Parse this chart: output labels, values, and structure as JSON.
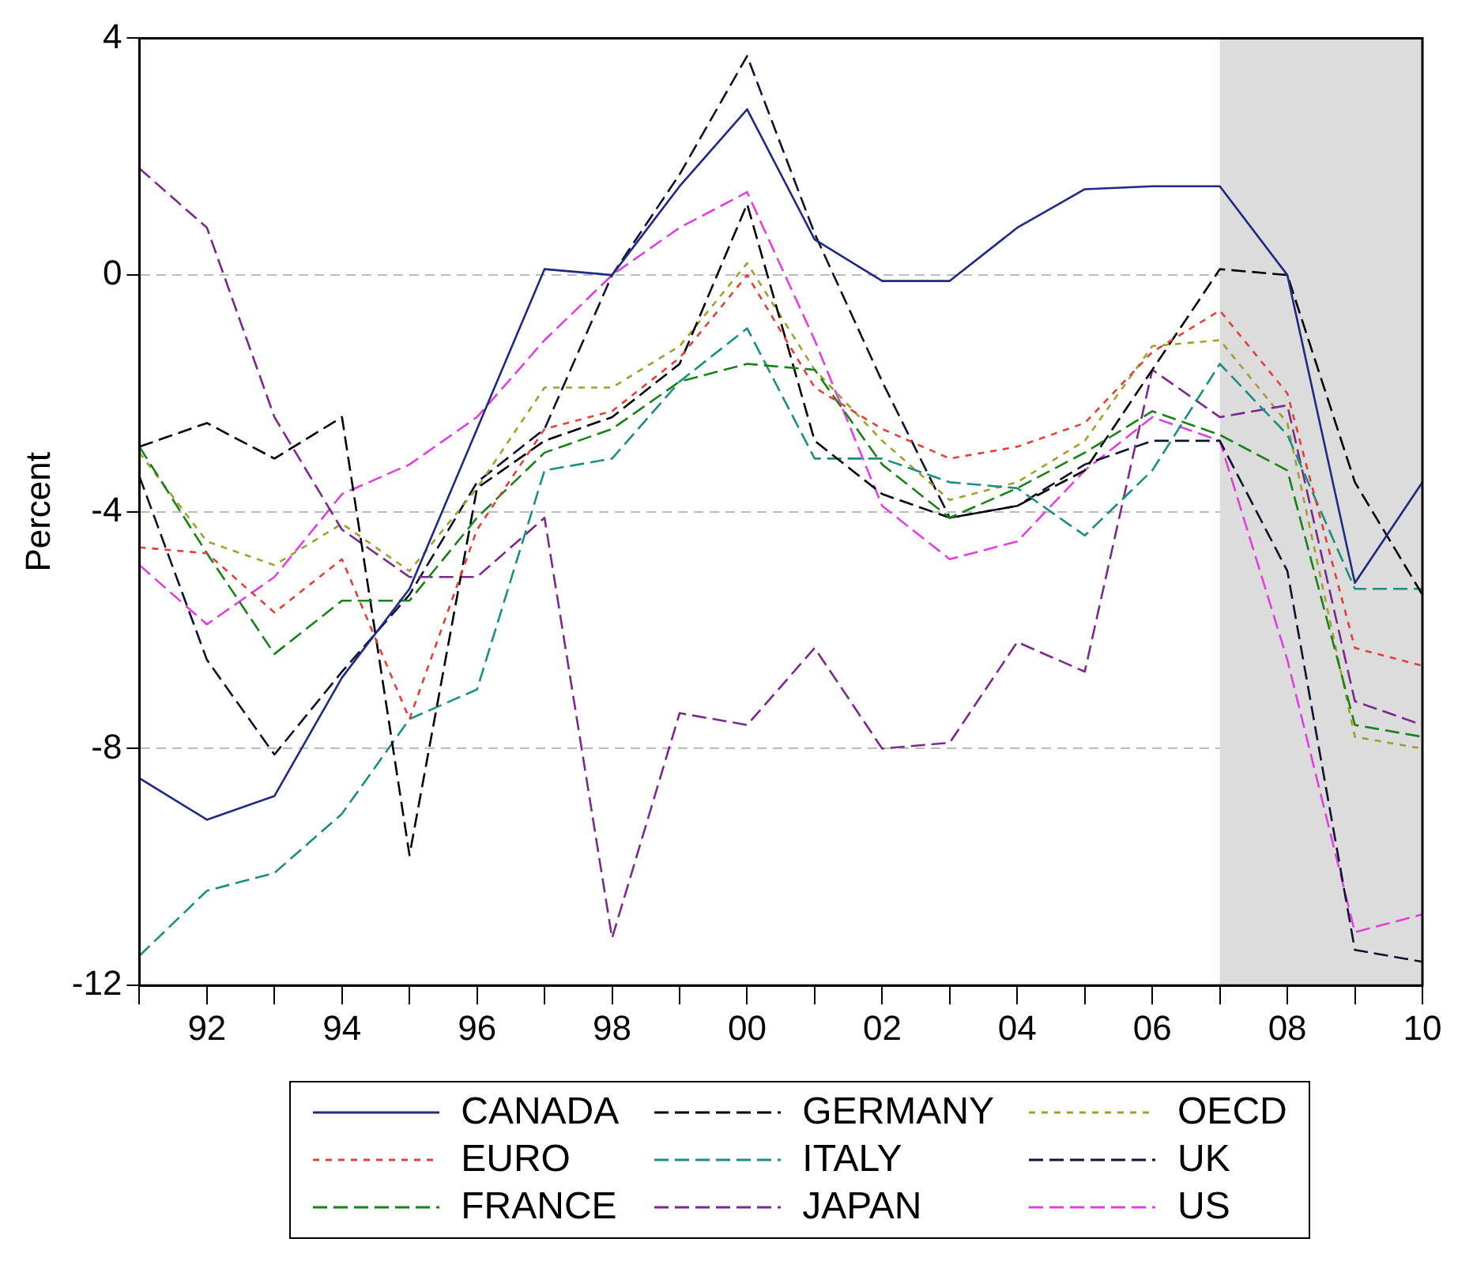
{
  "chart_data": {
    "type": "line",
    "ylabel": "Percent",
    "x": [
      1991,
      1992,
      1993,
      1994,
      1995,
      1996,
      1997,
      1998,
      1999,
      2000,
      2001,
      2002,
      2003,
      2004,
      2005,
      2006,
      2007,
      2008,
      2009,
      2010
    ],
    "xlim": [
      1991,
      2010
    ],
    "xticks": [
      {
        "value": 1991,
        "label": null
      },
      {
        "value": 1992,
        "label": "92"
      },
      {
        "value": 1993,
        "label": null
      },
      {
        "value": 1994,
        "label": "94"
      },
      {
        "value": 1995,
        "label": null
      },
      {
        "value": 1996,
        "label": "96"
      },
      {
        "value": 1997,
        "label": null
      },
      {
        "value": 1998,
        "label": "98"
      },
      {
        "value": 1999,
        "label": null
      },
      {
        "value": 2000,
        "label": "00"
      },
      {
        "value": 2001,
        "label": null
      },
      {
        "value": 2002,
        "label": "02"
      },
      {
        "value": 2003,
        "label": null
      },
      {
        "value": 2004,
        "label": "04"
      },
      {
        "value": 2005,
        "label": null
      },
      {
        "value": 2006,
        "label": "06"
      },
      {
        "value": 2007,
        "label": null
      },
      {
        "value": 2008,
        "label": "08"
      },
      {
        "value": 2009,
        "label": null
      },
      {
        "value": 2010,
        "label": "10"
      }
    ],
    "ylim": [
      -12,
      4
    ],
    "yticks": [
      -12,
      -8,
      -4,
      0,
      4
    ],
    "grid": "y",
    "legend": "bottom",
    "marker": "none",
    "bands": [
      {
        "axis": "x",
        "from": 2007,
        "to": 2010,
        "color": "#dcdcdc"
      }
    ],
    "series": [
      {
        "name": "CANADA",
        "color": "#1f2a80",
        "line_style": "solid",
        "values": [
          -8.5,
          -9.2,
          -8.8,
          -6.8,
          -5.3,
          -2.6,
          0.1,
          0.0,
          1.5,
          2.8,
          0.6,
          -0.1,
          -0.1,
          0.8,
          1.45,
          1.5,
          1.5,
          0.0,
          -5.2,
          -3.5
        ]
      },
      {
        "name": "EURO",
        "color": "#e0403a",
        "line_style": "dotted",
        "values": [
          -4.6,
          -4.7,
          -5.7,
          -4.8,
          -7.5,
          -4.3,
          -2.6,
          -2.3,
          -1.4,
          0.0,
          -1.9,
          -2.6,
          -3.1,
          -2.9,
          -2.5,
          -1.3,
          -0.6,
          -2.0,
          -6.3,
          -6.6
        ]
      },
      {
        "name": "FRANCE",
        "color": "#1a801a",
        "line_style": "dashed",
        "values": [
          -2.9,
          -4.7,
          -6.4,
          -5.5,
          -5.5,
          -4.1,
          -3.0,
          -2.6,
          -1.8,
          -1.5,
          -1.6,
          -3.2,
          -4.1,
          -3.6,
          -3.0,
          -2.3,
          -2.7,
          -3.3,
          -7.6,
          -7.8
        ]
      },
      {
        "name": "GERMANY",
        "color": "#000000",
        "line_style": "dashed",
        "values": [
          -2.9,
          -2.5,
          -3.1,
          -2.4,
          -9.8,
          -3.6,
          -2.8,
          -2.4,
          -1.5,
          1.2,
          -2.8,
          -3.7,
          -4.1,
          -3.9,
          -3.3,
          -1.6,
          0.1,
          0.0,
          -3.5,
          -5.4
        ]
      },
      {
        "name": "ITALY",
        "color": "#1a8f80",
        "line_style": "dashed",
        "values": [
          -11.5,
          -10.4,
          -10.1,
          -9.1,
          -7.5,
          -7.0,
          -3.3,
          -3.1,
          -1.8,
          -0.9,
          -3.1,
          -3.1,
          -3.5,
          -3.6,
          -4.4,
          -3.3,
          -1.5,
          -2.7,
          -5.3,
          -5.3
        ]
      },
      {
        "name": "JAPAN",
        "color": "#7a2a8a",
        "line_style": "dashed",
        "values": [
          1.8,
          0.8,
          -2.4,
          -4.3,
          -5.1,
          -5.1,
          -4.1,
          -11.2,
          -7.4,
          -7.6,
          -6.3,
          -8.0,
          -7.9,
          -6.2,
          -6.7,
          -1.6,
          -2.4,
          -2.2,
          -7.2,
          -7.6
        ]
      },
      {
        "name": "OECD",
        "color": "#a0a030",
        "line_style": "dotted",
        "values": [
          -3.0,
          -4.5,
          -4.9,
          -4.2,
          -5.0,
          -3.6,
          -1.9,
          -1.9,
          -1.2,
          0.2,
          -1.6,
          -2.8,
          -3.8,
          -3.5,
          -2.8,
          -1.2,
          -1.1,
          -2.5,
          -7.8,
          -8.0
        ]
      },
      {
        "name": "UK",
        "color": "#101030",
        "line_style": "dashed",
        "values": [
          -3.4,
          -6.5,
          -8.1,
          -6.7,
          -5.4,
          -3.5,
          -2.6,
          0.0,
          1.7,
          3.7,
          0.7,
          -1.8,
          -4.1,
          -3.9,
          -3.2,
          -2.8,
          -2.8,
          -5.0,
          -11.4,
          -11.6
        ]
      },
      {
        "name": "US",
        "color": "#e040e0",
        "line_style": "dashed",
        "values": [
          -4.9,
          -5.9,
          -5.1,
          -3.7,
          -3.2,
          -2.4,
          -1.1,
          0.0,
          0.8,
          1.4,
          -1.1,
          -3.9,
          -4.8,
          -4.5,
          -3.3,
          -2.4,
          -2.8,
          -6.5,
          -11.1,
          -10.8
        ]
      }
    ]
  }
}
